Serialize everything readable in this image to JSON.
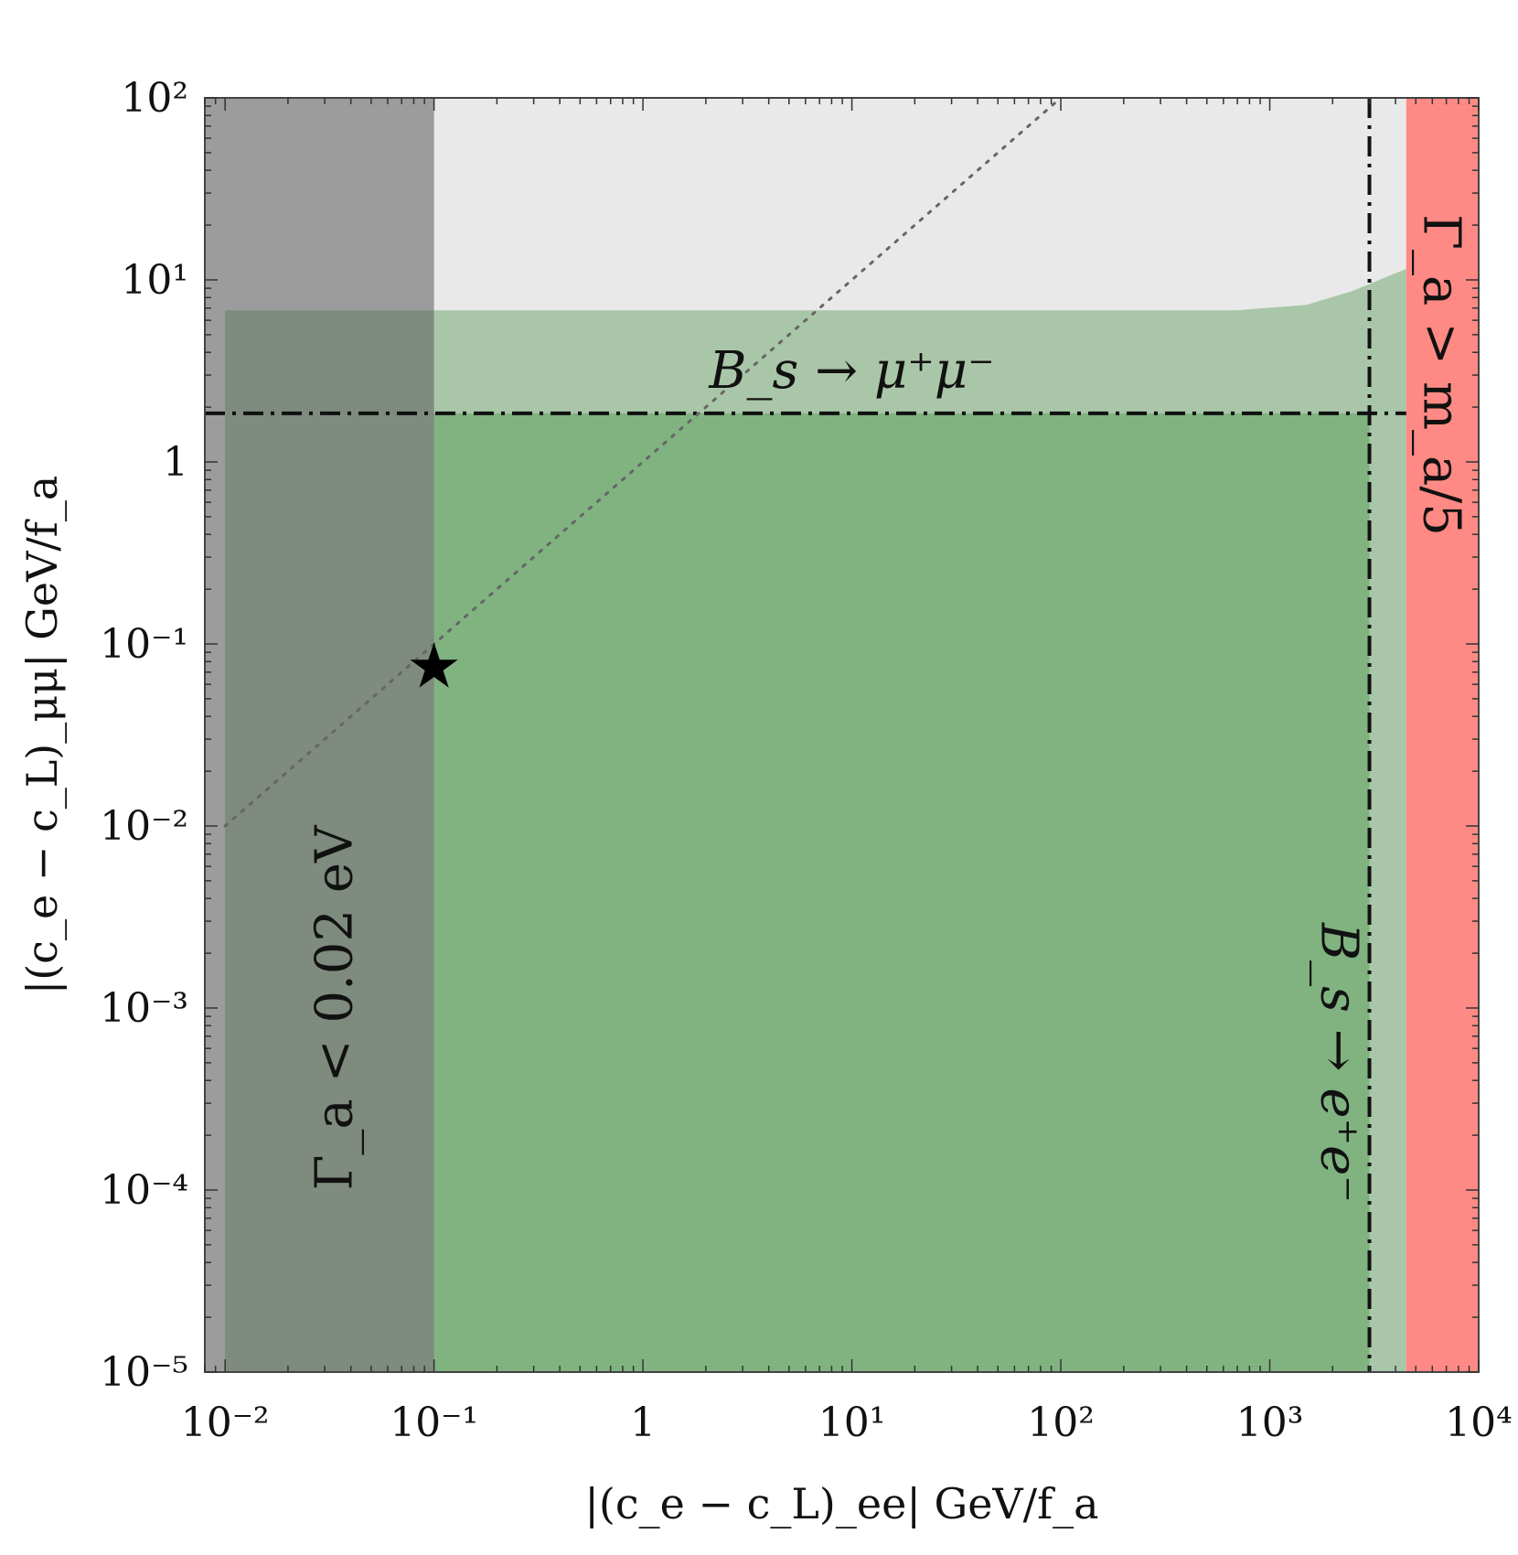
{
  "chart_data": {
    "type": "area",
    "xscale": "log",
    "yscale": "log",
    "xlim": [
      0.008,
      10000
    ],
    "ylim": [
      1e-05,
      100
    ],
    "grid": false,
    "xlabel": "|(c_e − c_L)_ee| GeV/f_a",
    "ylabel": "|(c_e − c_L)_μμ| GeV/f_a",
    "x_ticks": [
      {
        "value": 0.01,
        "label": "10⁻²"
      },
      {
        "value": 0.1,
        "label": "10⁻¹"
      },
      {
        "value": 1,
        "label": "1"
      },
      {
        "value": 10,
        "label": "10¹"
      },
      {
        "value": 100,
        "label": "10²"
      },
      {
        "value": 1000,
        "label": "10³"
      },
      {
        "value": 10000,
        "label": "10⁴"
      }
    ],
    "y_ticks": [
      {
        "value": 1e-05,
        "label": "10⁻⁵"
      },
      {
        "value": 0.0001,
        "label": "10⁻⁴"
      },
      {
        "value": 0.001,
        "label": "10⁻³"
      },
      {
        "value": 0.01,
        "label": "10⁻²"
      },
      {
        "value": 0.1,
        "label": "10⁻¹"
      },
      {
        "value": 1,
        "label": "1"
      },
      {
        "value": 10,
        "label": "10¹"
      },
      {
        "value": 100,
        "label": "10²"
      }
    ],
    "regions": [
      {
        "name": "Γ_a < 0.02 eV",
        "x_range": [
          0.008,
          0.1
        ],
        "y_range": [
          1e-05,
          100
        ],
        "color": "#7a7a7a"
      },
      {
        "name": "Γ_a > m_a/5",
        "x_range": [
          4500,
          10000
        ],
        "y_range": [
          1e-05,
          100
        ],
        "color": "#ff8a85"
      },
      {
        "name": "allowed-region",
        "x_range": [
          0.01,
          4500
        ],
        "boundary_points": [
          [
            0.01,
            6.8
          ],
          [
            100,
            6.8
          ],
          [
            700,
            6.8
          ],
          [
            1500,
            7.3
          ],
          [
            2500,
            8.7
          ],
          [
            4500,
            11.5
          ]
        ],
        "color": "#80b380"
      }
    ],
    "bounds": [
      {
        "name": "B_s → μ⁺μ⁻",
        "orientation": "horizontal",
        "value": 1.85,
        "style": "dash-dot"
      },
      {
        "name": "B_s → e⁺e⁻",
        "orientation": "vertical",
        "value": 3000,
        "style": "dash-dot"
      }
    ],
    "diagonal": {
      "style": "dotted",
      "from": [
        0.01,
        0.01
      ],
      "to": [
        100,
        100
      ]
    },
    "star_point": {
      "x": 0.1,
      "y": 0.075
    }
  },
  "labels": {
    "bs_mumu": "B_s → μ⁺μ⁻",
    "bs_ee": "B_s → e⁺e⁻",
    "gamma_low": "Γ_a < 0.02 eV",
    "gamma_high": "Γ_a > m_a/5"
  },
  "star_glyph": "★"
}
